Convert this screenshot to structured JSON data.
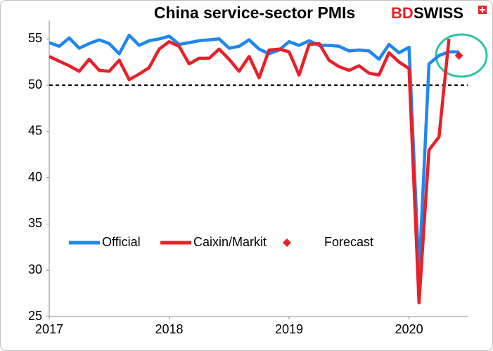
{
  "chart_data": {
    "type": "line",
    "title": "China service-sector PMIs",
    "logo": {
      "accent": "BD",
      "rest": "SWISS"
    },
    "categories": [
      "2017",
      null,
      null,
      null,
      null,
      null,
      null,
      null,
      null,
      null,
      null,
      null,
      "2018",
      null,
      null,
      null,
      null,
      null,
      null,
      null,
      null,
      null,
      null,
      null,
      "2019",
      null,
      null,
      null,
      null,
      null,
      null,
      null,
      null,
      null,
      null,
      null,
      "2020",
      null,
      null,
      null,
      null,
      null
    ],
    "series": [
      {
        "name": "Official",
        "color": "#1e87f0",
        "values": [
          54.6,
          54.2,
          55.1,
          54.0,
          54.5,
          54.9,
          54.5,
          53.4,
          55.4,
          54.3,
          54.8,
          55.0,
          55.3,
          54.4,
          54.6,
          54.8,
          54.9,
          55.0,
          54.0,
          54.2,
          54.9,
          53.9,
          53.4,
          53.8,
          54.7,
          54.3,
          54.8,
          54.3,
          54.3,
          54.2,
          53.7,
          53.8,
          53.7,
          52.8,
          54.4,
          53.5,
          54.1,
          29.6,
          52.3,
          53.2,
          53.6,
          53.6
        ]
      },
      {
        "name": "Caixin/Markit",
        "color": "#e8202a",
        "values": [
          53.1,
          52.6,
          52.1,
          51.5,
          52.8,
          51.6,
          51.5,
          52.7,
          50.6,
          51.2,
          51.9,
          53.9,
          54.7,
          54.2,
          52.3,
          52.9,
          52.9,
          53.9,
          52.8,
          51.5,
          53.1,
          50.8,
          53.8,
          53.9,
          53.6,
          51.1,
          54.4,
          54.5,
          52.7,
          52.0,
          51.6,
          52.1,
          51.3,
          51.1,
          53.5,
          52.5,
          51.8,
          26.5,
          43.0,
          44.4,
          55.0,
          null
        ]
      },
      {
        "name": "Forecast",
        "color": "#e8202a",
        "marker": "diamond",
        "values": [
          null,
          null,
          null,
          null,
          null,
          null,
          null,
          null,
          null,
          null,
          null,
          null,
          null,
          null,
          null,
          null,
          null,
          null,
          null,
          null,
          null,
          null,
          null,
          null,
          null,
          null,
          null,
          null,
          null,
          null,
          null,
          null,
          null,
          null,
          null,
          null,
          null,
          null,
          null,
          null,
          null,
          53.2
        ]
      }
    ],
    "ylim": [
      25,
      57
    ],
    "yticks": [
      25,
      30,
      35,
      40,
      45,
      50,
      55
    ],
    "hline": 50,
    "grid": false,
    "legend": "inside-bottom-left"
  }
}
